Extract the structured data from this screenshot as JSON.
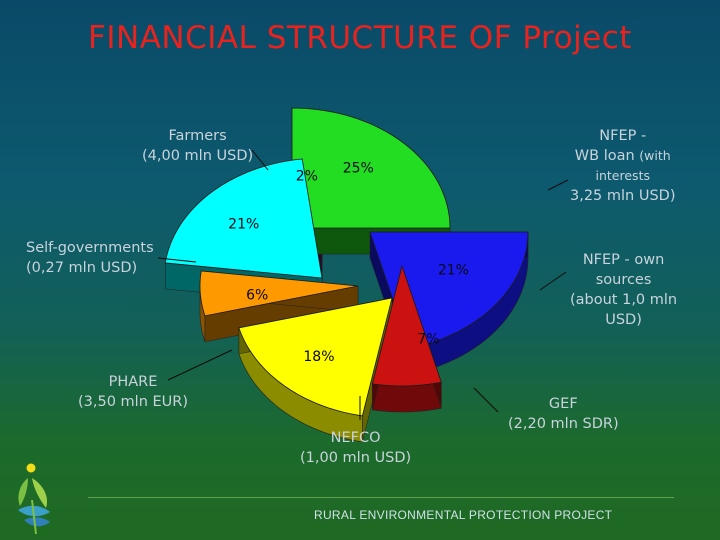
{
  "slide": {
    "title": "FINANCIAL STRUCTURE OF Project",
    "footer": "RURAL ENVIRONMENTAL PROTECTION PROJECT"
  },
  "callouts": {
    "farmers": [
      "Farmers",
      "(4,00 mln USD)"
    ],
    "nfep_wb": [
      "NFEP -",
      "WB loan",
      "(with",
      "interests",
      "3,25 mln USD)"
    ],
    "selfgov": [
      "Self-governments",
      "(0,27 mln USD)"
    ],
    "nfep_own": [
      "NFEP - own",
      "sources",
      "(about 1,0 mln",
      "USD)"
    ],
    "phare": [
      "PHARE",
      "(3,50 mln EUR)"
    ],
    "gef": [
      "GEF",
      "(2,20 mln SDR)"
    ],
    "nefco": [
      "NEFCO",
      "(1,00 mln USD)"
    ]
  },
  "colors": {
    "farmers": "#22dd22",
    "nfep_wb": "#1a1aee",
    "nfep_own": "#cc1111",
    "gef": "#ffff00",
    "nefco": "#ff9900",
    "phare": "#00ffff",
    "selfgov": "#7a0a6a",
    "label": "#0a0a14",
    "title": "#e8231e"
  },
  "chart_data": {
    "type": "pie",
    "title": "FINANCIAL STRUCTURE OF Project",
    "exploded": true,
    "three_d": true,
    "slices": [
      {
        "key": "farmers",
        "label": "Farmers",
        "pct_label": "25%",
        "value": 25
      },
      {
        "key": "nfep_wb",
        "label": "NFEP - WB loan",
        "pct_label": "21%",
        "value": 21
      },
      {
        "key": "nfep_own",
        "label": "NFEP - own sources",
        "pct_label": "7%",
        "value": 7
      },
      {
        "key": "gef",
        "label": "GEF",
        "pct_label": "18%",
        "value": 18
      },
      {
        "key": "nefco",
        "label": "NEFCO",
        "pct_label": "6%",
        "value": 6
      },
      {
        "key": "phare",
        "label": "PHARE",
        "pct_label": "21%",
        "value": 21
      },
      {
        "key": "selfgov",
        "label": "Self-governments",
        "pct_label": "2%",
        "value": 2
      }
    ]
  }
}
